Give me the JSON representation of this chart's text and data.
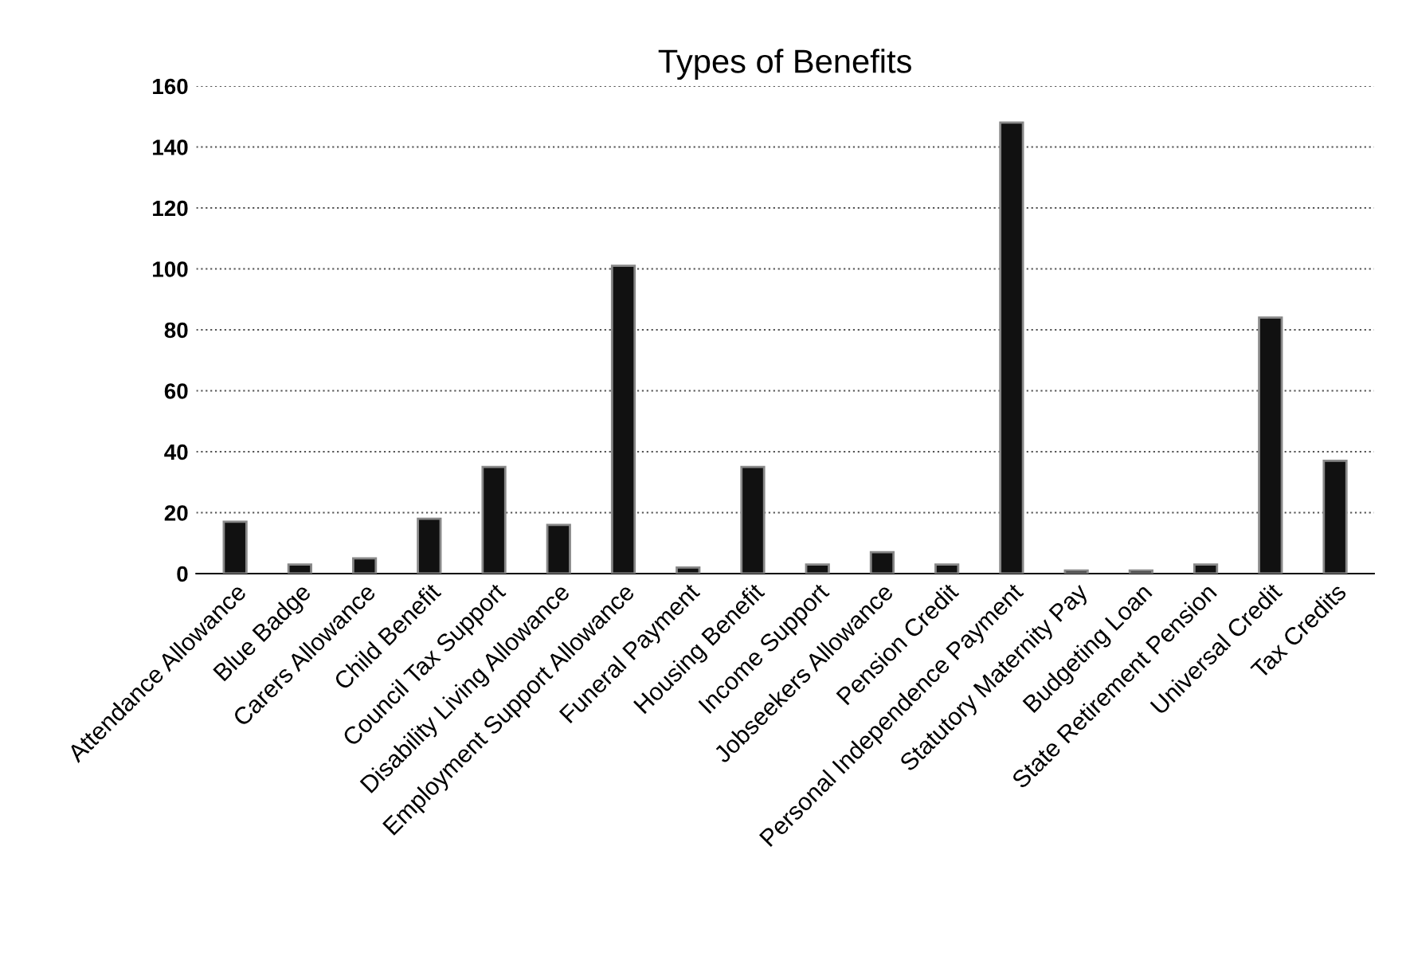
{
  "chart_data": {
    "type": "bar",
    "title": "Types of Benefits",
    "categories": [
      "Attendance Allowance",
      "Blue Badge",
      "Carers Allowance",
      "Child Benefit",
      "Council Tax Support",
      "Disability Living Allowance",
      "Employment Support Allowance",
      "Funeral Payment",
      "Housing Benefit",
      "Income Support",
      "Jobseekers Allowance",
      "Pension Credit",
      "Personal Independence Payment",
      "Statutory Maternity Pay",
      "Budgeting Loan",
      "State Retirement Pension",
      "Universal Credit",
      "Tax Credits"
    ],
    "values": [
      17,
      3,
      5,
      18,
      35,
      16,
      101,
      2,
      35,
      3,
      7,
      3,
      148,
      1,
      1,
      3,
      84,
      37
    ],
    "color": "#111111",
    "ylim": [
      0,
      160
    ],
    "yticks": [
      0,
      20,
      40,
      60,
      80,
      100,
      120,
      140,
      160
    ],
    "grid": "y"
  }
}
